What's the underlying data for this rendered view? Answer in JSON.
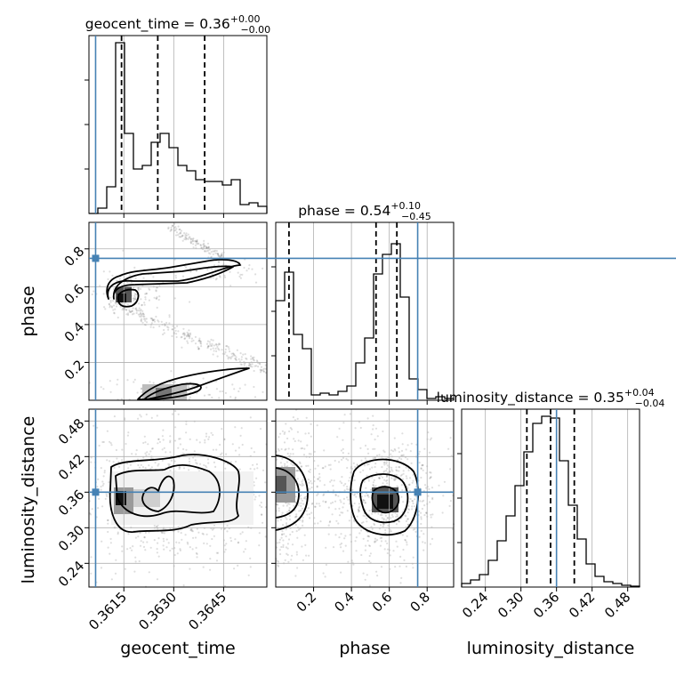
{
  "chart_data": {
    "type": "corner",
    "parameters": [
      {
        "name": "geocent_time",
        "label": "geocent_time",
        "range": [
          0.36045,
          0.3658
        ],
        "ticks": [
          0.3615,
          0.363,
          0.3645
        ],
        "tick_labels": [
          "0.3615",
          "0.3630",
          "0.3645"
        ],
        "truth": 0.36065,
        "title": {
          "base": "geocent_time = 0.36",
          "sup": "+0.00",
          "sub": "−0.00"
        },
        "quantiles": [
          0.36143,
          0.36252,
          0.36393
        ],
        "hist": [
          0.0,
          0.03,
          0.15,
          0.96,
          0.45,
          0.25,
          0.27,
          0.4,
          0.45,
          0.37,
          0.27,
          0.24,
          0.19,
          0.18,
          0.18,
          0.16,
          0.19,
          0.05,
          0.06,
          0.04
        ]
      },
      {
        "name": "phase",
        "label": "phase",
        "range": [
          0.0,
          0.94
        ],
        "ticks": [
          0.2,
          0.4,
          0.6,
          0.8
        ],
        "tick_labels": [
          "0.2",
          "0.4",
          "0.6",
          "0.8"
        ],
        "truth": 0.75,
        "title": {
          "base": "phase = 0.54",
          "sup": "+0.10",
          "sub": "−0.45"
        },
        "quantiles": [
          0.07,
          0.53,
          0.64
        ],
        "hist": [
          0.56,
          0.72,
          0.37,
          0.29,
          0.03,
          0.04,
          0.03,
          0.05,
          0.08,
          0.21,
          0.35,
          0.71,
          0.82,
          0.88,
          0.58,
          0.12,
          0.06,
          0.01,
          0.02,
          0.01
        ]
      },
      {
        "name": "luminosity_distance",
        "label": "luminosity_distance",
        "range": [
          0.2,
          0.5
        ],
        "ticks": [
          0.24,
          0.3,
          0.36,
          0.42,
          0.48
        ],
        "tick_labels": [
          "0.24",
          "0.30",
          "0.36",
          "0.42",
          "0.48"
        ],
        "truth": 0.36,
        "title": {
          "base": "luminosity_distance = 0.35",
          "sup": "+0.04",
          "sub": "−0.04"
        },
        "quantiles": [
          0.31,
          0.35,
          0.39
        ],
        "hist": [
          0.02,
          0.04,
          0.07,
          0.15,
          0.26,
          0.4,
          0.57,
          0.76,
          0.92,
          0.96,
          0.95,
          0.71,
          0.46,
          0.27,
          0.13,
          0.06,
          0.03,
          0.02,
          0.01,
          0.005
        ]
      }
    ],
    "truth_color": "#4682b4",
    "hist_color": "#000000",
    "grid": true
  }
}
